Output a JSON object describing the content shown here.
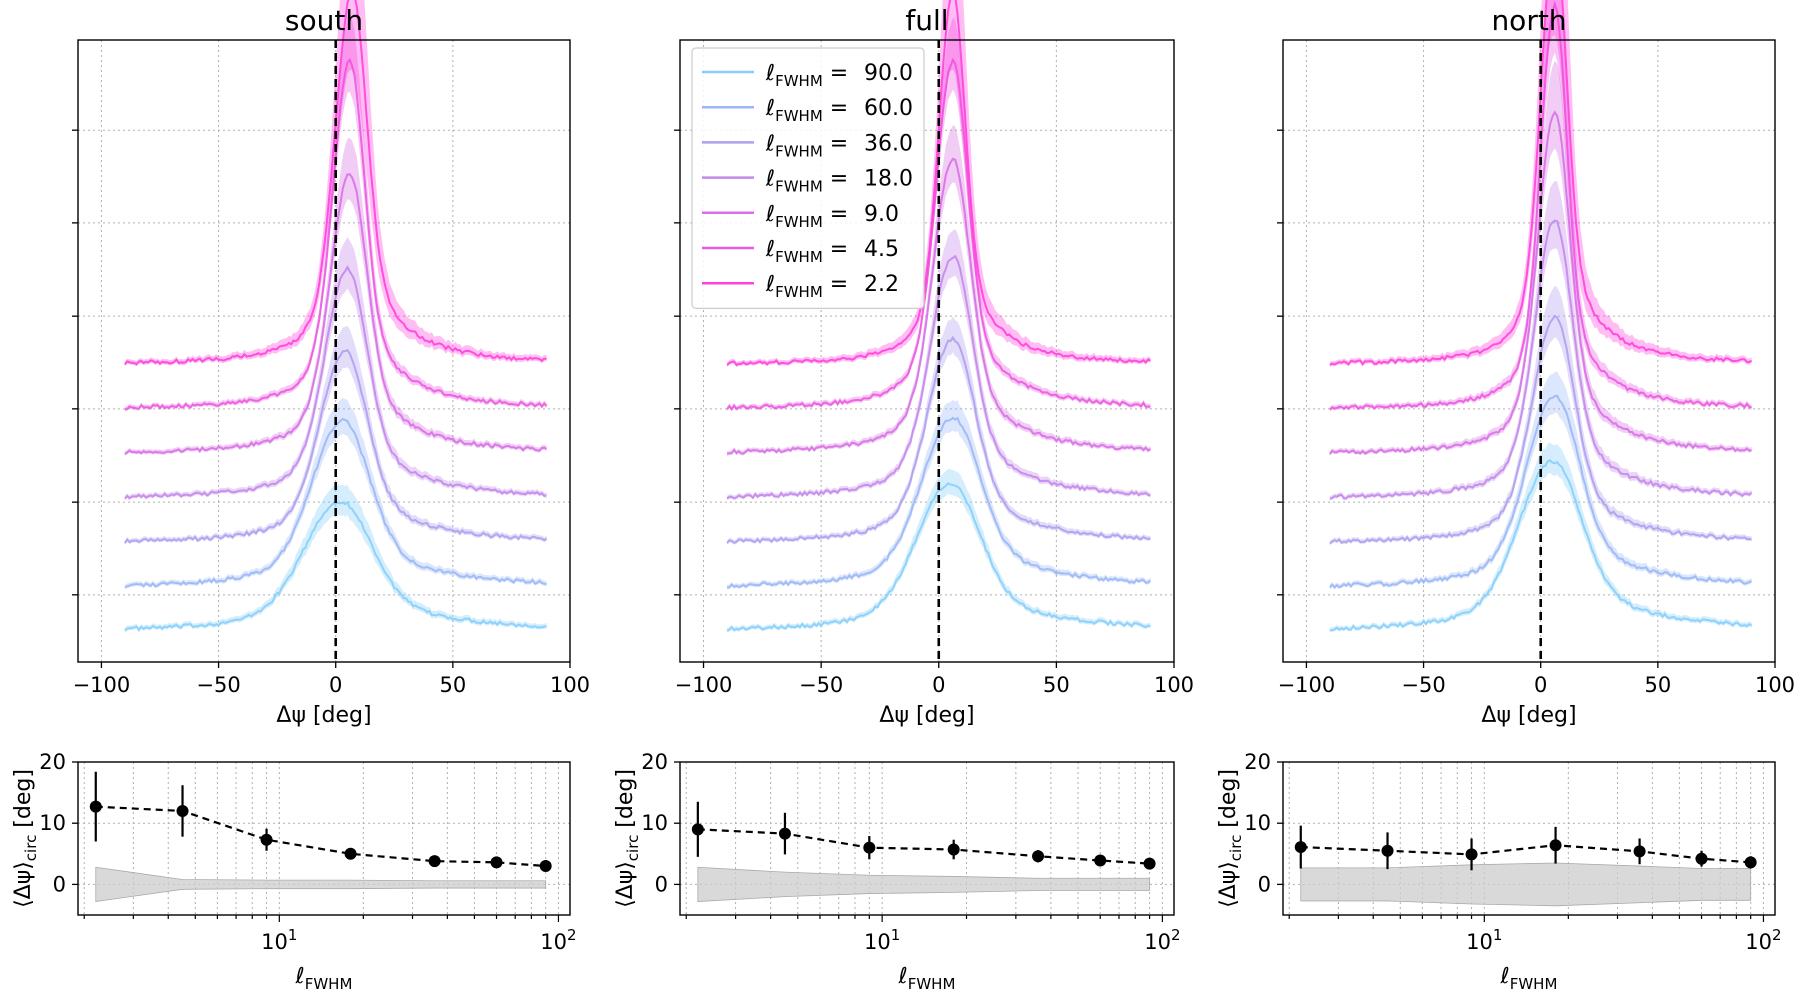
{
  "colors": {
    "lines": [
      "#87cefa",
      "#9ab7f5",
      "#ae9ff0",
      "#c388eb",
      "#d770e6",
      "#eb59e1",
      "#ff41dc"
    ],
    "null_band": "#cccccc",
    "points": "#000000",
    "zero_line": "#000000"
  },
  "legend": {
    "label_prefix": "ℓ",
    "label_sub": "FWHM",
    "label_sep": " =",
    "entries": [
      "90.0",
      "60.0",
      "36.0",
      "18.0",
      "9.0",
      "4.5",
      "2.2"
    ],
    "placement": "top-left (full panel)"
  },
  "chart_data": [
    {
      "type": "line",
      "title": "south",
      "xlabel": "Δψ [deg]",
      "xlim": [
        -110,
        100
      ],
      "xticks": [
        "−100",
        "−50",
        "0",
        "50",
        "100"
      ],
      "grid": true,
      "vertical_dashed_line_at": 0,
      "curves_offset_upward_per_series": true,
      "series": [
        {
          "legend": "90.0",
          "peak_x": 2,
          "width": 13,
          "peak_height": 0.42,
          "spread": 0.05
        },
        {
          "legend": "60.0",
          "peak_x": 3,
          "width": 11,
          "peak_height": 0.54,
          "spread": 0.06
        },
        {
          "legend": "36.0",
          "peak_x": 4,
          "width": 9,
          "peak_height": 0.62,
          "spread": 0.07
        },
        {
          "legend": "18.0",
          "peak_x": 5,
          "width": 8,
          "peak_height": 0.74,
          "spread": 0.09
        },
        {
          "legend": "9.0",
          "peak_x": 6,
          "width": 7,
          "peak_height": 0.9,
          "spread": 0.11
        },
        {
          "legend": "4.5",
          "peak_x": 6,
          "width": 6,
          "peak_height": 1.12,
          "spread": 0.14
        },
        {
          "legend": "2.2",
          "peak_x": 7,
          "width": 6,
          "peak_height": 1.2,
          "spread": 0.35
        }
      ]
    },
    {
      "type": "line",
      "title": "full",
      "xlabel": "Δψ [deg]",
      "xlim": [
        -110,
        100
      ],
      "xticks": [
        "−100",
        "−50",
        "0",
        "50",
        "100"
      ],
      "grid": true,
      "vertical_dashed_line_at": 0,
      "curves_offset_upward_per_series": true,
      "series": [
        {
          "legend": "90.0",
          "peak_x": 5,
          "width": 12,
          "peak_height": 0.48,
          "spread": 0.04
        },
        {
          "legend": "60.0",
          "peak_x": 6,
          "width": 11,
          "peak_height": 0.55,
          "spread": 0.05
        },
        {
          "legend": "36.0",
          "peak_x": 6,
          "width": 9,
          "peak_height": 0.66,
          "spread": 0.06
        },
        {
          "legend": "18.0",
          "peak_x": 6,
          "width": 8,
          "peak_height": 0.78,
          "spread": 0.08
        },
        {
          "legend": "9.0",
          "peak_x": 6,
          "width": 7,
          "peak_height": 0.95,
          "spread": 0.1
        },
        {
          "legend": "4.5",
          "peak_x": 6,
          "width": 6,
          "peak_height": 1.12,
          "spread": 0.13
        },
        {
          "legend": "2.2",
          "peak_x": 6,
          "width": 5,
          "peak_height": 1.2,
          "spread": 0.35
        }
      ]
    },
    {
      "type": "line",
      "title": "north",
      "xlabel": "Δψ [deg]",
      "xlim": [
        -110,
        100
      ],
      "xticks": [
        "−100",
        "−50",
        "0",
        "50",
        "100"
      ],
      "grid": true,
      "vertical_dashed_line_at": 0,
      "curves_offset_upward_per_series": true,
      "series": [
        {
          "legend": "90.0",
          "peak_x": 5,
          "width": 12,
          "peak_height": 0.55,
          "spread": 0.05
        },
        {
          "legend": "60.0",
          "peak_x": 6,
          "width": 10,
          "peak_height": 0.62,
          "spread": 0.07
        },
        {
          "legend": "36.0",
          "peak_x": 6,
          "width": 8,
          "peak_height": 0.73,
          "spread": 0.09
        },
        {
          "legend": "18.0",
          "peak_x": 6,
          "width": 7,
          "peak_height": 0.9,
          "spread": 0.12
        },
        {
          "legend": "9.0",
          "peak_x": 6,
          "width": 6,
          "peak_height": 1.1,
          "spread": 0.16
        },
        {
          "legend": "4.5",
          "peak_x": 6,
          "width": 5,
          "peak_height": 1.3,
          "spread": 0.22
        },
        {
          "legend": "2.2",
          "peak_x": 6,
          "width": 5,
          "peak_height": 1.38,
          "spread": 0.45
        }
      ]
    },
    {
      "type": "scatter",
      "panel": "south",
      "xlabel": "ℓFWHM",
      "ylabel": "⟨Δψ⟩circ [deg]",
      "x_scale": "log",
      "xlim": [
        1.9,
        110
      ],
      "ylim": [
        -5,
        20
      ],
      "yticks": [
        "0",
        "10",
        "20"
      ],
      "grid": true,
      "x": [
        2.2,
        4.5,
        9.0,
        18.0,
        36.0,
        60.0,
        90.0
      ],
      "y": [
        12.7,
        12.0,
        7.3,
        5.0,
        3.8,
        3.6,
        3.0
      ],
      "yerr": [
        5.7,
        4.2,
        1.8,
        0.8,
        0.6,
        0.5,
        0.4
      ],
      "null_band": [
        2.8,
        0.8,
        0.7,
        0.7,
        0.6,
        0.6,
        0.6
      ]
    },
    {
      "type": "scatter",
      "panel": "full",
      "xlabel": "ℓFWHM",
      "ylabel": "⟨Δψ⟩circ [deg]",
      "x_scale": "log",
      "xlim": [
        1.9,
        110
      ],
      "ylim": [
        -5,
        20
      ],
      "yticks": [
        "0",
        "10",
        "20"
      ],
      "grid": true,
      "x": [
        2.2,
        4.5,
        9.0,
        18.0,
        36.0,
        60.0,
        90.0
      ],
      "y": [
        9.0,
        8.3,
        6.0,
        5.7,
        4.6,
        3.9,
        3.4
      ],
      "yerr": [
        4.5,
        3.4,
        1.9,
        1.6,
        1.0,
        0.6,
        0.6
      ],
      "null_band": [
        2.8,
        2.0,
        1.5,
        1.3,
        1.0,
        1.0,
        1.0
      ]
    },
    {
      "type": "scatter",
      "panel": "north",
      "xlabel": "ℓFWHM",
      "ylabel": "⟨Δψ⟩circ [deg]",
      "x_scale": "log",
      "xlim": [
        1.9,
        110
      ],
      "ylim": [
        -5,
        20
      ],
      "yticks": [
        "0",
        "10",
        "20"
      ],
      "grid": true,
      "x": [
        2.2,
        4.5,
        9.0,
        18.0,
        36.0,
        60.0,
        90.0
      ],
      "y": [
        6.1,
        5.5,
        4.9,
        6.4,
        5.4,
        4.2,
        3.6
      ],
      "yerr": [
        3.5,
        3.0,
        2.6,
        3.0,
        2.1,
        1.3,
        1.0
      ],
      "null_band": [
        2.7,
        2.7,
        3.2,
        3.5,
        3.0,
        2.6,
        2.6
      ]
    }
  ]
}
